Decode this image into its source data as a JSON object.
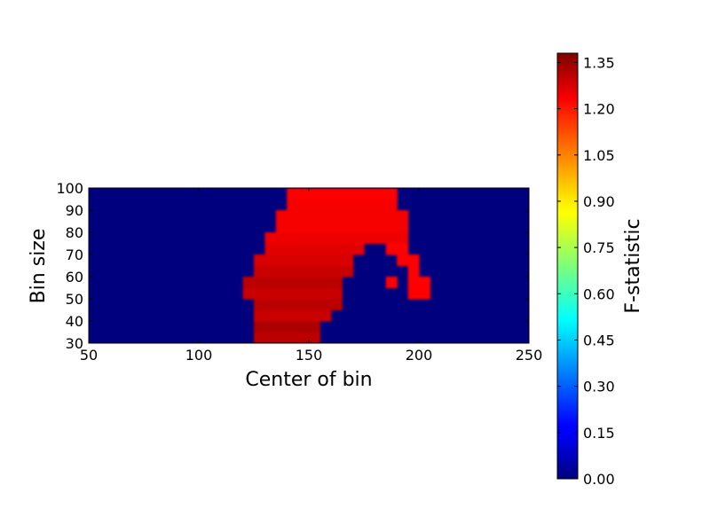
{
  "chart_data": {
    "type": "heatmap",
    "xlabel": "Center of bin",
    "ylabel": "Bin size",
    "xlim": [
      50,
      250
    ],
    "ylim": [
      30,
      100
    ],
    "xticks": [
      "50",
      "100",
      "150",
      "200",
      "250"
    ],
    "yticks": [
      "30",
      "40",
      "50",
      "60",
      "70",
      "80",
      "90",
      "100"
    ],
    "grid": false,
    "colormap": "jet",
    "colorbar": {
      "label": "F-statistic",
      "range": [
        0.0,
        1.38
      ],
      "ticks": [
        "0.00",
        "0.15",
        "0.30",
        "0.45",
        "0.60",
        "0.75",
        "0.90",
        "1.05",
        "1.20",
        "1.35"
      ]
    },
    "cell_width_x": 5,
    "cell_height_y": 5,
    "regions": [
      {
        "y": [
          30,
          35
        ],
        "x_from": 125,
        "x_to": 155,
        "value": 1.3
      },
      {
        "y": [
          35,
          40
        ],
        "x_from": 125,
        "x_to": 155,
        "value": 1.32
      },
      {
        "y": [
          40,
          45
        ],
        "x_from": 125,
        "x_to": 160,
        "value": 1.28
      },
      {
        "y": [
          45,
          50
        ],
        "x_from": 125,
        "x_to": 165,
        "value": 1.3
      },
      {
        "y": [
          50,
          55
        ],
        "x_from": 120,
        "x_to": 165,
        "value": 1.28
      },
      {
        "y": [
          50,
          55
        ],
        "x_from": 195,
        "x_to": 205,
        "value": 1.2
      },
      {
        "y": [
          55,
          60
        ],
        "x_from": 120,
        "x_to": 165,
        "value": 1.3
      },
      {
        "y": [
          55,
          60
        ],
        "x_from": 185,
        "x_to": 190,
        "value": 1.2
      },
      {
        "y": [
          55,
          60
        ],
        "x_from": 195,
        "x_to": 205,
        "value": 1.2
      },
      {
        "y": [
          60,
          65
        ],
        "x_from": 125,
        "x_to": 170,
        "value": 1.28
      },
      {
        "y": [
          60,
          65
        ],
        "x_from": 195,
        "x_to": 200,
        "value": 1.2
      },
      {
        "y": [
          65,
          70
        ],
        "x_from": 125,
        "x_to": 170,
        "value": 1.26
      },
      {
        "y": [
          65,
          70
        ],
        "x_from": 190,
        "x_to": 200,
        "value": 1.2
      },
      {
        "y": [
          70,
          75
        ],
        "x_from": 130,
        "x_to": 175,
        "value": 1.25
      },
      {
        "y": [
          70,
          75
        ],
        "x_from": 185,
        "x_to": 195,
        "value": 1.2
      },
      {
        "y": [
          75,
          80
        ],
        "x_from": 130,
        "x_to": 195,
        "value": 1.23
      },
      {
        "y": [
          80,
          85
        ],
        "x_from": 135,
        "x_to": 195,
        "value": 1.22
      },
      {
        "y": [
          85,
          90
        ],
        "x_from": 135,
        "x_to": 195,
        "value": 1.22
      },
      {
        "y": [
          90,
          95
        ],
        "x_from": 140,
        "x_to": 190,
        "value": 1.22
      },
      {
        "y": [
          95,
          100
        ],
        "x_from": 140,
        "x_to": 190,
        "value": 1.21
      }
    ]
  }
}
